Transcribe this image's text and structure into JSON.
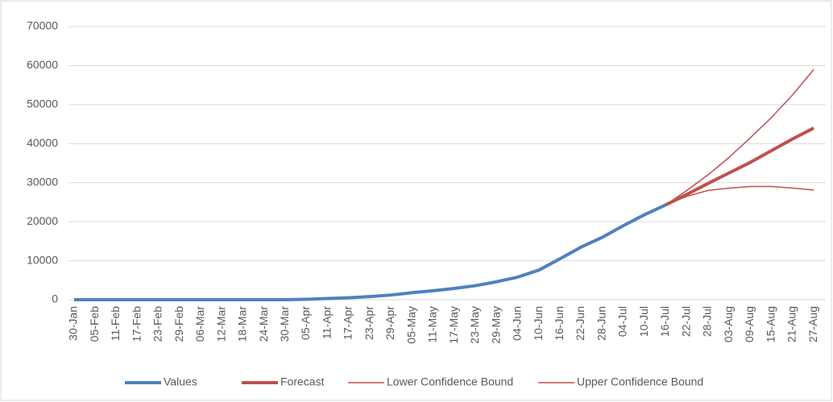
{
  "chart_data": {
    "type": "line",
    "categories": [
      "30-Jan",
      "05-Feb",
      "11-Feb",
      "17-Feb",
      "23-Feb",
      "29-Feb",
      "06-Mar",
      "12-Mar",
      "18-Mar",
      "24-Mar",
      "30-Mar",
      "05-Apr",
      "11-Apr",
      "17-Apr",
      "23-Apr",
      "29-Apr",
      "05-May",
      "11-May",
      "17-May",
      "23-May",
      "29-May",
      "04-Jun",
      "10-Jun",
      "16-Jun",
      "22-Jun",
      "28-Jun",
      "04-Jul",
      "10-Jul",
      "16-Jul",
      "22-Jul",
      "28-Jul",
      "03-Aug",
      "09-Aug",
      "15-Aug",
      "21-Aug",
      "27-Aug"
    ],
    "series": [
      {
        "name": "Values",
        "color": "#4f81bd",
        "width": 4,
        "values": [
          0,
          0,
          0,
          0,
          0,
          0,
          0,
          0,
          0,
          0,
          0,
          100,
          300,
          500,
          800,
          1200,
          1800,
          2300,
          2900,
          3600,
          4600,
          5800,
          7600,
          10500,
          13500,
          16000,
          19000,
          21800,
          24300,
          null,
          null,
          null,
          null,
          null,
          null,
          null
        ]
      },
      {
        "name": "Forecast",
        "color": "#c0504d",
        "width": 4,
        "values": [
          null,
          null,
          null,
          null,
          null,
          null,
          null,
          null,
          null,
          null,
          null,
          null,
          null,
          null,
          null,
          null,
          null,
          null,
          null,
          null,
          null,
          null,
          null,
          null,
          null,
          null,
          null,
          null,
          24300,
          27000,
          29800,
          32500,
          35200,
          38200,
          41200,
          44000
        ]
      },
      {
        "name": "Lower Confidence Bound",
        "color": "#c0504d",
        "width": 1.5,
        "values": [
          null,
          null,
          null,
          null,
          null,
          null,
          null,
          null,
          null,
          null,
          null,
          null,
          null,
          null,
          null,
          null,
          null,
          null,
          null,
          null,
          null,
          null,
          null,
          null,
          null,
          null,
          null,
          null,
          24300,
          26500,
          28000,
          28600,
          29000,
          29000,
          28600,
          28100
        ]
      },
      {
        "name": "Upper Confidence Bound",
        "color": "#c0504d",
        "width": 1.5,
        "values": [
          null,
          null,
          null,
          null,
          null,
          null,
          null,
          null,
          null,
          null,
          null,
          null,
          null,
          null,
          null,
          null,
          null,
          null,
          null,
          null,
          null,
          null,
          null,
          null,
          null,
          null,
          null,
          null,
          24300,
          28000,
          32000,
          36500,
          41500,
          46700,
          52500,
          59000
        ]
      }
    ],
    "ylim": [
      0,
      70000
    ],
    "yticks": [
      0,
      10000,
      20000,
      30000,
      40000,
      50000,
      60000,
      70000
    ],
    "grid": true,
    "legend": "bottom"
  }
}
